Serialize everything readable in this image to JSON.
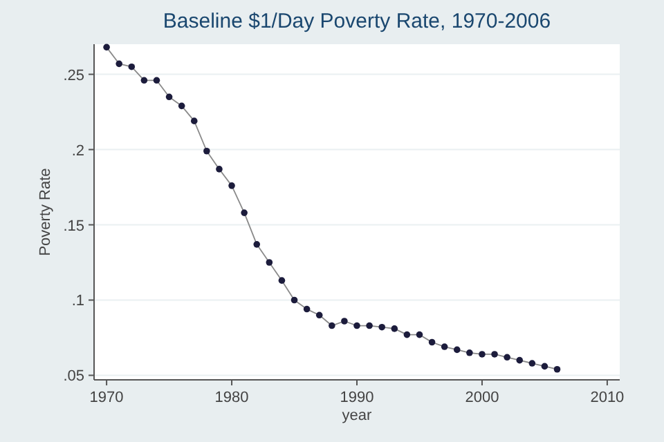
{
  "chart_data": {
    "type": "line",
    "title": "Baseline $1/Day Poverty Rate, 1970-2006",
    "xlabel": "year",
    "ylabel": "Poverty Rate",
    "x": [
      1970,
      1971,
      1972,
      1973,
      1974,
      1975,
      1976,
      1977,
      1978,
      1979,
      1980,
      1981,
      1982,
      1983,
      1984,
      1985,
      1986,
      1987,
      1988,
      1989,
      1990,
      1991,
      1992,
      1993,
      1994,
      1995,
      1996,
      1997,
      1998,
      1999,
      2000,
      2001,
      2002,
      2003,
      2004,
      2005,
      2006
    ],
    "series": [
      {
        "color": "#1c1c3c",
        "values": [
          0.268,
          0.257,
          0.255,
          0.246,
          0.246,
          0.235,
          0.229,
          0.219,
          0.199,
          0.187,
          0.176,
          0.158,
          0.137,
          0.125,
          0.113,
          0.1,
          0.094,
          0.09,
          0.083,
          0.086,
          0.083,
          0.083,
          0.082,
          0.081,
          0.077,
          0.077,
          0.072,
          0.069,
          0.067,
          0.065,
          0.064,
          0.064,
          0.062,
          0.06,
          0.058,
          0.056,
          0.054
        ]
      }
    ],
    "xlim": [
      1969,
      2011
    ],
    "xticks": [
      1970,
      1980,
      1990,
      2000,
      2010
    ],
    "ylim": [
      0.047,
      0.27
    ],
    "yticks": [
      {
        "value": 0.05,
        "label": ".05"
      },
      {
        "value": 0.1,
        "label": ".1"
      },
      {
        "value": 0.15,
        "label": ".15"
      },
      {
        "value": 0.2,
        "label": ".2"
      },
      {
        "value": 0.25,
        "label": ".25"
      }
    ],
    "grid": "y",
    "marker": "circle",
    "line_style": "solid"
  }
}
